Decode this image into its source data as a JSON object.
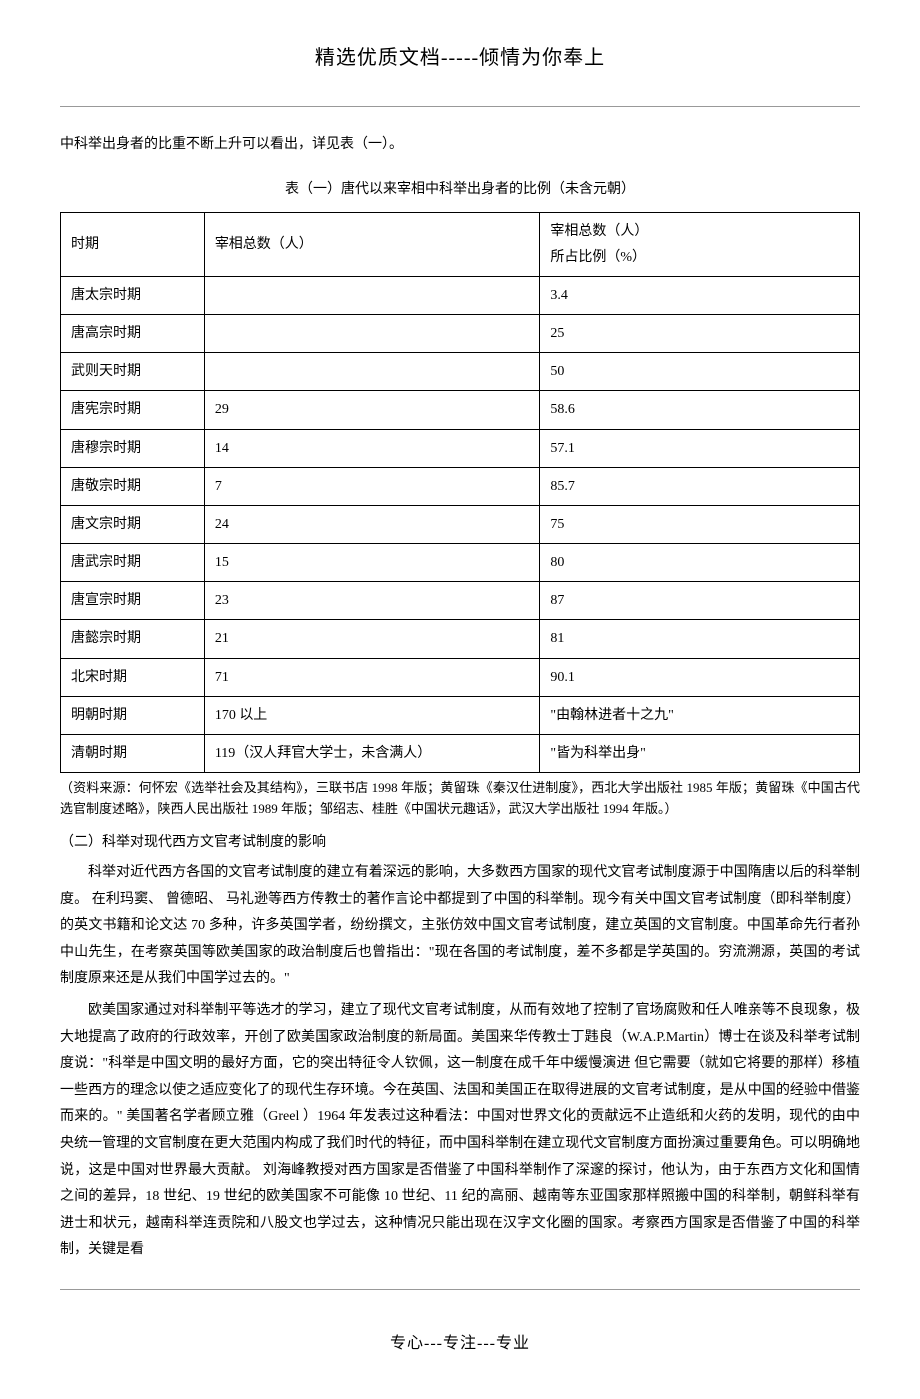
{
  "header": {
    "title": "精选优质文档-----倾情为你奉上"
  },
  "intro_text": "中科举出身者的比重不断上升可以看出，详见表（一）。",
  "table": {
    "caption": "表（一）唐代以来宰相中科举出身者的比例（未含元朝）",
    "headers": {
      "period": "时期",
      "total": "宰相总数（人）",
      "ratio_line1": "宰相总数（人）",
      "ratio_line2": "所占比例（%）"
    },
    "rows": [
      {
        "period": "唐太宗时期",
        "total": "",
        "ratio": "3.4"
      },
      {
        "period": "唐高宗时期",
        "total": "",
        "ratio": "25"
      },
      {
        "period": "武则天时期",
        "total": "",
        "ratio": "50"
      },
      {
        "period": "唐宪宗时期",
        "total": "29",
        "ratio": "58.6"
      },
      {
        "period": "唐穆宗时期",
        "total": "14",
        "ratio": "57.1"
      },
      {
        "period": "唐敬宗时期",
        "total": "7",
        "ratio": "85.7"
      },
      {
        "period": "唐文宗时期",
        "total": "24",
        "ratio": "75"
      },
      {
        "period": "唐武宗时期",
        "total": "15",
        "ratio": "80"
      },
      {
        "period": "唐宣宗时期",
        "total": "23",
        "ratio": "87"
      },
      {
        "period": "唐懿宗时期",
        "total": "21",
        "ratio": "81"
      },
      {
        "period": "北宋时期",
        "total": "71",
        "ratio": "90.1"
      },
      {
        "period": "明朝时期",
        "total": "170 以上",
        "ratio": "\"由翰林进者十之九\""
      },
      {
        "period": "清朝时期",
        "total": "119（汉人拜官大学士，未含满人）",
        "ratio": "\"皆为科举出身\""
      }
    ]
  },
  "source_note": "（资料来源：何怀宏《选举社会及其结构》，三联书店 1998 年版；黄留珠《秦汉仕进制度》，西北大学出版社 1985 年版；黄留珠《中国古代选官制度述略》，陕西人民出版社 1989 年版；邹绍志、桂胜《中国状元趣话》，武汉大学出版社 1994 年版。）",
  "section2": {
    "heading": "（二）科举对现代西方文官考试制度的影响",
    "para1": "科举对近代西方各国的文官考试制度的建立有着深远的影响，大多数西方国家的现代文官考试制度源于中国隋唐以后的科举制度。 在利玛窦、 曾德昭、 马礼逊等西方传教士的著作言论中都提到了中国的科举制。现今有关中国文官考试制度（即科举制度）的英文书籍和论文达 70 多种，许多英国学者，纷纷撰文，主张仿效中国文官考试制度，建立英国的文官制度。中国革命先行者孙中山先生，在考察英国等欧美国家的政治制度后也曾指出：\"现在各国的考试制度，差不多都是学英国的。穷流溯源，英国的考试制度原来还是从我们中国学过去的。\"",
    "para2": "欧美国家通过对科举制平等选才的学习，建立了现代文官考试制度，从而有效地了控制了官场腐败和任人唯亲等不良现象，极大地提高了政府的行政效率，开创了欧美国家政治制度的新局面。美国来华传教士丁韪良（W.A.P.Martin）博士在谈及科举考试制度说：\"科举是中国文明的最好方面，它的突出特征令人钦佩，这一制度在成千年中缓慢演进 但它需要（就如它将要的那样）移植一些西方的理念以使之适应变化了的现代生存环境。今在英国、法国和美国正在取得进展的文官考试制度，是从中国的经验中借鉴而来的。\" 美国著名学者顾立雅（Greel ）1964 年发表过这种看法：中国对世界文化的贡献远不止造纸和火药的发明，现代的由中央统一管理的文官制度在更大范围内构成了我们时代的特征，而中国科举制在建立现代文官制度方面扮演过重要角色。可以明确地说，这是中国对世界最大贡献。 刘海峰教授对西方国家是否借鉴了中国科举制作了深邃的探讨，他认为，由于东西方文化和国情之间的差异，18 世纪、19 世纪的欧美国家不可能像 10 世纪、11 纪的高丽、越南等东亚国家那样照搬中国的科举制，朝鲜科举有进士和状元，越南科举连贡院和八股文也学过去，这种情况只能出现在汉字文化圈的国家。考察西方国家是否借鉴了中国的科举制，关键是看"
  },
  "footer": {
    "text": "专心---专注---专业"
  }
}
